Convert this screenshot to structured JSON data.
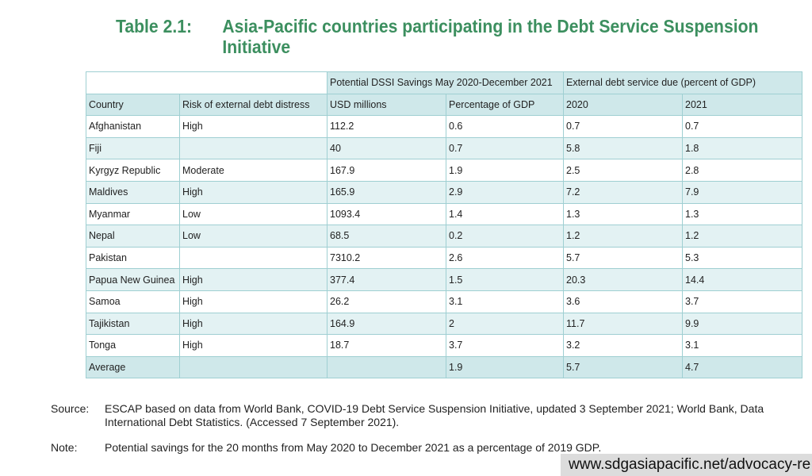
{
  "title": {
    "number": "Table 2.1:",
    "line1": "Asia-Pacific countries participating in the Debt Service Suspension",
    "line2": "Initiative"
  },
  "table": {
    "group_headers": {
      "savings": "Potential DSSI Savings May 2020-December 2021",
      "debt": "External debt service due (percent of GDP)"
    },
    "columns": [
      "Country",
      "Risk of external debt distress",
      "USD millions",
      "Percentage of GDP",
      "2020",
      "2021"
    ],
    "rows": [
      [
        "Afghanistan",
        "High",
        "112.2",
        "0.6",
        "0.7",
        "0.7"
      ],
      [
        "Fiji",
        "",
        "40",
        "0.7",
        "5.8",
        "1.8"
      ],
      [
        "Kyrgyz Republic",
        "Moderate",
        "167.9",
        "1.9",
        "2.5",
        "2.8"
      ],
      [
        "Maldives",
        "High",
        "165.9",
        "2.9",
        "7.2",
        "7.9"
      ],
      [
        "Myanmar",
        "Low",
        "1093.4",
        "1.4",
        "1.3",
        "1.3"
      ],
      [
        "Nepal",
        "Low",
        "68.5",
        "0.2",
        "1.2",
        "1.2"
      ],
      [
        "Pakistan",
        "",
        "7310.2",
        "2.6",
        "5.7",
        "5.3"
      ],
      [
        "Papua New Guinea",
        "High",
        "377.4",
        "1.5",
        "20.3",
        "14.4"
      ],
      [
        "Samoa",
        "High",
        "26.2",
        "3.1",
        "3.6",
        "3.7"
      ],
      [
        "Tajikistan",
        "High",
        "164.9",
        "2",
        "11.7",
        "9.9"
      ],
      [
        "Tonga",
        "High",
        "18.7",
        "3.7",
        "3.2",
        "3.1"
      ]
    ],
    "average": [
      "Average",
      "",
      "",
      "1.9",
      "5.7",
      "4.7"
    ]
  },
  "source": {
    "label": "Source:",
    "line1": "ESCAP based on data from World Bank, COVID-19 Debt Service Suspension Initiative, updated 3 September 2021; World Bank, Data",
    "line2": "International Debt Statistics. (Accessed 7 September 2021)."
  },
  "note": {
    "label": "Note:",
    "text": "Potential savings for the 20 months from May 2020 to December 2021 as a percentage of 2019 GDP."
  },
  "watermark_url": "www.sdgasiapacific.net/advocacy-re"
}
